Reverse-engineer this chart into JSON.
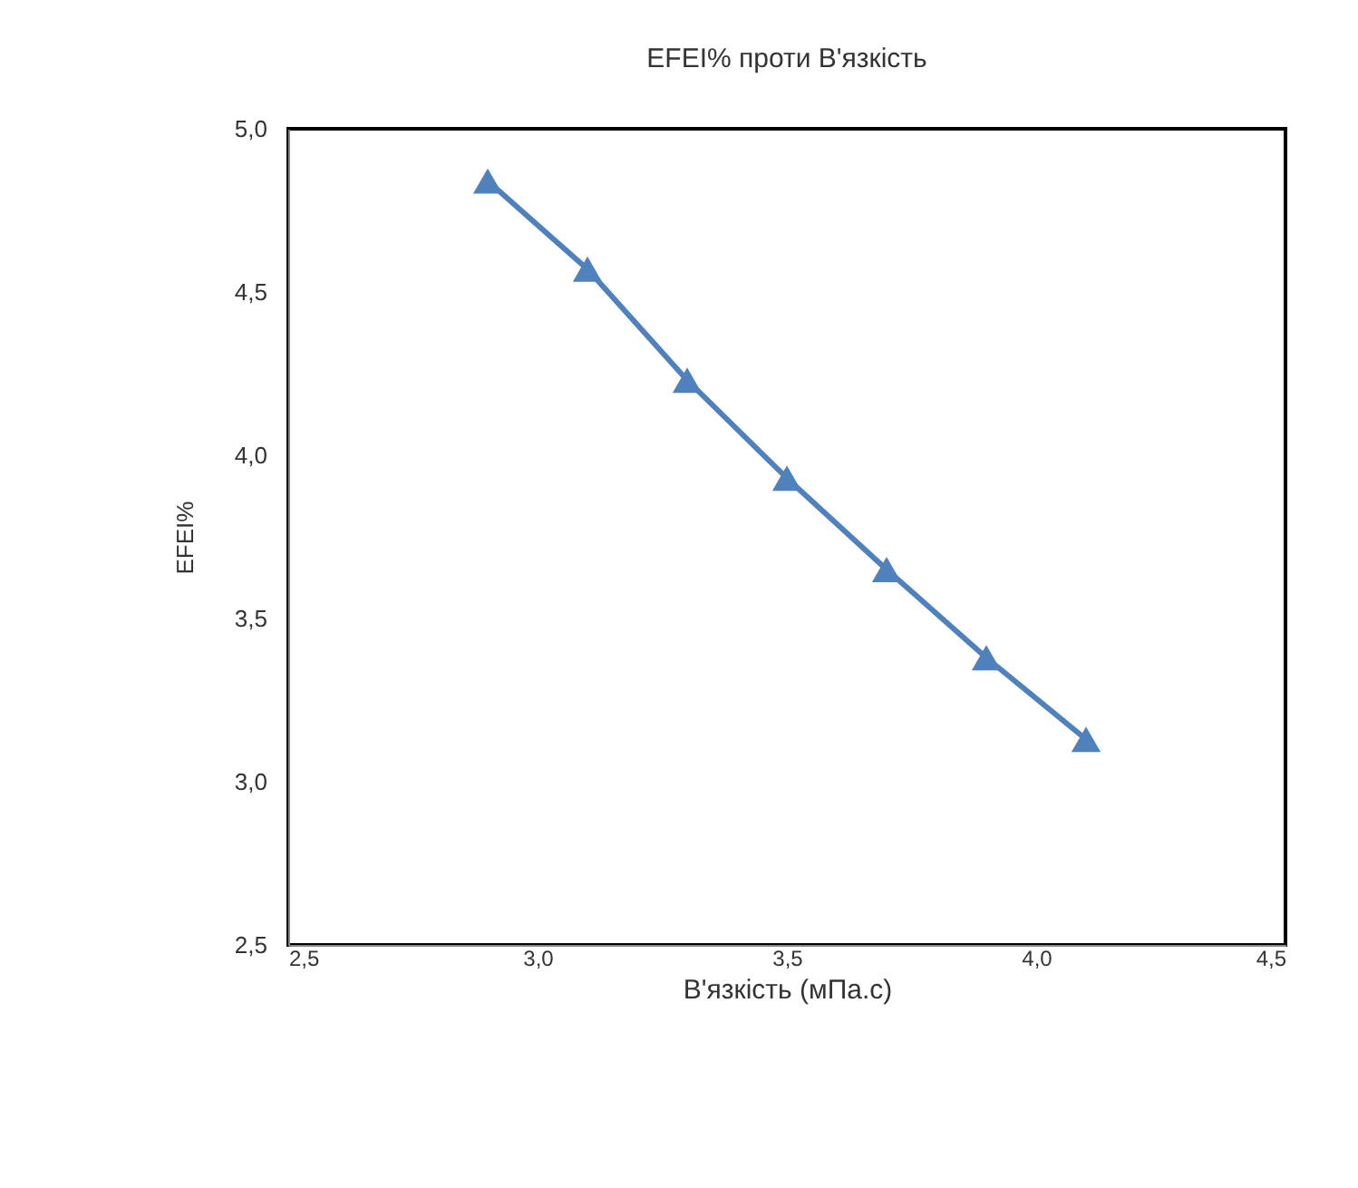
{
  "chart_data": {
    "type": "line",
    "title": "EFEI% проти В'язкість",
    "xlabel": "В'язкість (мПа.с)",
    "ylabel": "EFEI%",
    "x": [
      2.9,
      3.1,
      3.3,
      3.5,
      3.7,
      3.9,
      4.1
    ],
    "series": [
      {
        "color": "#4f81bd",
        "values": [
          4.84,
          4.57,
          4.23,
          3.93,
          3.65,
          3.38,
          3.13
        ]
      }
    ],
    "xlim": [
      2.5,
      4.5
    ],
    "xticks": [
      {
        "value": 2.5,
        "label": "2,5"
      },
      {
        "value": 3.0,
        "label": "3,0"
      },
      {
        "value": 3.5,
        "label": "3,5"
      },
      {
        "value": 4.0,
        "label": "4,0"
      },
      {
        "value": 4.5,
        "label": "4,5"
      }
    ],
    "ylim": [
      2.5,
      5.0
    ],
    "yticks": [
      {
        "value": 2.5,
        "label": "2,5"
      },
      {
        "value": 3.0,
        "label": "3,0"
      },
      {
        "value": 3.5,
        "label": "3,5"
      },
      {
        "value": 4.0,
        "label": "4,0"
      },
      {
        "value": 4.5,
        "label": "4,5"
      },
      {
        "value": 5.0,
        "label": "5,0"
      }
    ],
    "grid": false,
    "marker": "triangle",
    "line_style": "solid"
  }
}
